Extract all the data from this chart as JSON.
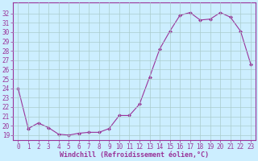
{
  "x": [
    0,
    1,
    2,
    3,
    4,
    5,
    6,
    7,
    8,
    9,
    10,
    11,
    12,
    13,
    14,
    15,
    16,
    17,
    18,
    19,
    20,
    21,
    22,
    23
  ],
  "y": [
    24.0,
    19.7,
    20.3,
    19.8,
    19.1,
    19.0,
    19.2,
    19.3,
    19.3,
    19.7,
    21.1,
    21.1,
    22.3,
    25.2,
    28.2,
    30.1,
    31.8,
    32.1,
    31.3,
    31.4,
    32.1,
    31.6,
    30.1,
    26.6
  ],
  "line_color": "#993399",
  "marker_color": "#993399",
  "bg_color": "#cceeff",
  "grid_color": "#aacccc",
  "xlabel": "Windchill (Refroidissement éolien,°C)",
  "ylim": [
    18.5,
    33.2
  ],
  "xlim": [
    -0.5,
    23.5
  ],
  "yticks": [
    19,
    20,
    21,
    22,
    23,
    24,
    25,
    26,
    27,
    28,
    29,
    30,
    31,
    32
  ],
  "xticks": [
    0,
    1,
    2,
    3,
    4,
    5,
    6,
    7,
    8,
    9,
    10,
    11,
    12,
    13,
    14,
    15,
    16,
    17,
    18,
    19,
    20,
    21,
    22,
    23
  ],
  "spine_color": "#993399",
  "label_color": "#993399",
  "tick_color": "#993399",
  "tick_fontsize": 5.5,
  "xlabel_fontsize": 6.0,
  "marker_size": 2.0,
  "linewidth": 0.8
}
